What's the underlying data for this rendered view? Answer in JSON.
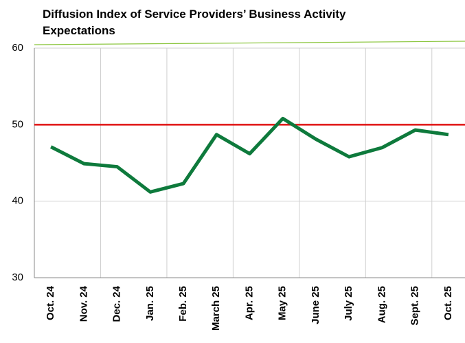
{
  "chart_data": {
    "type": "line",
    "title_lines": [
      "Diffusion Index of Service Providers’ Business Activity",
      "Expectations"
    ],
    "categories": [
      "Oct. 24",
      "Nov. 24",
      "Dec. 24",
      "Jan. 25",
      "Feb. 25",
      "March 25",
      "Apr. 25",
      "May 25",
      "June 25",
      "July 25",
      "Aug. 25",
      "Sept. 25",
      "Oct. 25"
    ],
    "values": [
      47.1,
      44.9,
      44.5,
      41.2,
      42.3,
      48.7,
      46.2,
      50.8,
      48.1,
      45.8,
      47.0,
      49.3,
      48.7
    ],
    "color": "#0e7a3c",
    "ylim": [
      30,
      60
    ],
    "yticks": [
      30,
      40,
      50,
      60
    ],
    "grid": true,
    "reference_line": {
      "value": 50,
      "color": "#e01010"
    }
  }
}
